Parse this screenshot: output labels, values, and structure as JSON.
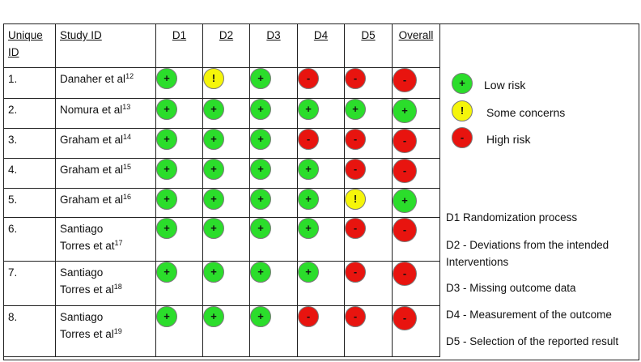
{
  "table": {
    "headers": {
      "unique_id": "Unique ID",
      "study_id": "Study ID",
      "d1": "D1",
      "d2": "D2",
      "d3": "D3",
      "d4": "D4",
      "d5": "D5",
      "overall": "Overall"
    },
    "rows": [
      {
        "id": "1.",
        "study": "Danaher et al",
        "ref": "12",
        "study2": "",
        "study2_ref": "",
        "d1": "+",
        "d2": "!",
        "d3": "+",
        "d4": "-",
        "d5": "-",
        "overall": "-"
      },
      {
        "id": "2.",
        "study": "Nomura et al",
        "ref": "13",
        "study2": "",
        "study2_ref": "",
        "d1": "+",
        "d2": "+",
        "d3": "+",
        "d4": "+",
        "d5": "+",
        "overall": "+"
      },
      {
        "id": "3.",
        "study": "Graham et al",
        "ref": "14",
        "study2": "",
        "study2_ref": "",
        "d1": "+",
        "d2": "+",
        "d3": "+",
        "d4": "-",
        "d5": "-",
        "overall": "-"
      },
      {
        "id": "4.",
        "study": "Graham et al",
        "ref": "15",
        "study2": "",
        "study2_ref": "",
        "d1": "+",
        "d2": "+",
        "d3": "+",
        "d4": "+",
        "d5": "-",
        "overall": "-"
      },
      {
        "id": "5.",
        "study": "Graham et al",
        "ref": "16",
        "study2": "",
        "study2_ref": "",
        "d1": "+",
        "d2": "+",
        "d3": "+",
        "d4": "+",
        "d5": "!",
        "overall": "+"
      },
      {
        "id": "6.",
        "study": "Santiago",
        "ref": "",
        "study2": "Torres et at",
        "study2_ref": "17",
        "d1": "+",
        "d2": "+",
        "d3": "+",
        "d4": "+",
        "d5": "-",
        "overall": "-"
      },
      {
        "id": "7.",
        "study": "Santiago",
        "ref": "",
        "study2": "Torres et al",
        "study2_ref": "18",
        "d1": "+",
        "d2": "+",
        "d3": "+",
        "d4": "+",
        "d5": "-",
        "overall": "-"
      },
      {
        "id": "8.",
        "study": "Santiago",
        "ref": "",
        "study2": "Torres et al",
        "study2_ref": "19",
        "d1": "+",
        "d2": "+",
        "d3": "+",
        "d4": "-",
        "d5": "-",
        "overall": "-"
      }
    ]
  },
  "legend": {
    "low": {
      "symbol": "+",
      "label": "Low risk"
    },
    "some": {
      "symbol": "!",
      "label": "Some concerns"
    },
    "high": {
      "symbol": "-",
      "label": "High risk"
    }
  },
  "domain_key": {
    "d1": "D1   Randomization process",
    "d2": "D2 - Deviations from the intended Interventions",
    "d3": "D3 - Missing outcome data",
    "d4": "D4 - Measurement of the outcome",
    "d5": "D5 - Selection of the reported result"
  },
  "colors": {
    "low": "#2bdd2b",
    "some": "#f5f50a",
    "high": "#e8140f"
  }
}
